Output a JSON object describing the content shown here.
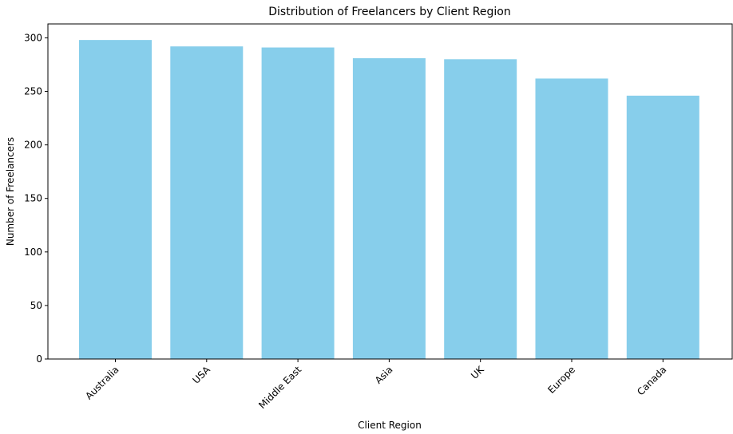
{
  "chart_data": {
    "type": "bar",
    "title": "Distribution of Freelancers by Client Region",
    "xlabel": "Client Region",
    "ylabel": "Number of Freelancers",
    "categories": [
      "Australia",
      "USA",
      "Middle East",
      "Asia",
      "UK",
      "Europe",
      "Canada"
    ],
    "values": [
      298,
      292,
      291,
      281,
      280,
      262,
      246
    ],
    "ylim": [
      0,
      313
    ],
    "yticks": [
      0,
      50,
      100,
      150,
      200,
      250,
      300
    ],
    "grid": false,
    "bar_color": "#87ceeb"
  }
}
